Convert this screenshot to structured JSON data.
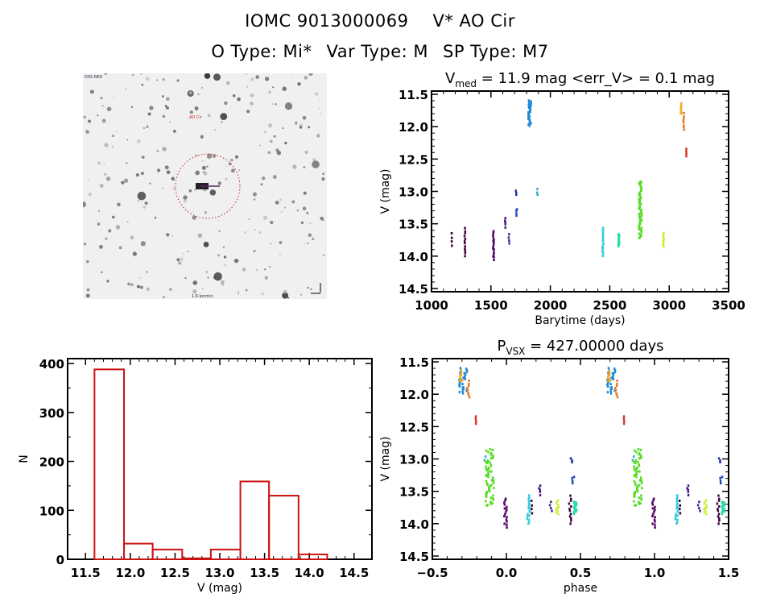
{
  "header": {
    "id_catalog": "IOMC 9013000069",
    "star_name": "V* AO Cir",
    "o_type": "O Type: Mi*",
    "var_type": "Var Type: M",
    "sp_type": "SP Type: M7"
  },
  "sky_image": {
    "description": "finding chart, inverted grayscale",
    "target_marker": "red dotted circle with crosshair"
  },
  "colors": {
    "histogram": "#cc1111",
    "axes": "#000000",
    "circle": "#cc2222"
  },
  "chart_data": [
    {
      "type": "scatter",
      "name": "lightcurve",
      "title_main": "V",
      "title_sub": "med",
      "title_rest": " = 11.9 mag <err_V> = 0.1 mag",
      "xlabel": "Barytime (days)",
      "ylabel": "V (mag)",
      "xlim": [
        1000,
        3500
      ],
      "ylim": [
        14.55,
        11.45
      ],
      "yreversed": true,
      "xticks": [
        "1000",
        "1500",
        "2000",
        "2500",
        "3000",
        "3500"
      ],
      "yticks": [
        "11.5",
        "12.0",
        "12.5",
        "13.0",
        "13.5",
        "14.0",
        "14.5"
      ],
      "clusters": [
        {
          "x": 1170,
          "ymin": 13.65,
          "ymax": 13.83,
          "color": "#330033",
          "n": 4
        },
        {
          "x": 1280,
          "ymin": 13.57,
          "ymax": 14.0,
          "color": "#440044",
          "n": 12
        },
        {
          "x": 1520,
          "ymin": 13.62,
          "ymax": 14.05,
          "color": "#550066",
          "n": 16
        },
        {
          "x": 1620,
          "ymin": 13.42,
          "ymax": 13.55,
          "color": "#4a1a88",
          "n": 5
        },
        {
          "x": 1650,
          "ymin": 13.66,
          "ymax": 13.8,
          "color": "#3a2a99",
          "n": 4
        },
        {
          "x": 1710,
          "ymin": 13.0,
          "ymax": 13.05,
          "color": "#2233aa",
          "n": 3
        },
        {
          "x": 1715,
          "ymin": 13.27,
          "ymax": 13.37,
          "color": "#2244bb",
          "n": 4
        },
        {
          "x": 1825,
          "ymin": 11.6,
          "ymax": 11.98,
          "color": "#1e88d8",
          "n": 30
        },
        {
          "x": 1890,
          "ymin": 12.97,
          "ymax": 13.05,
          "color": "#33aacc",
          "n": 3
        },
        {
          "x": 2440,
          "ymin": 13.57,
          "ymax": 14.0,
          "color": "#33ccdd",
          "n": 18
        },
        {
          "x": 2575,
          "ymin": 13.66,
          "ymax": 13.85,
          "color": "#22ddaa",
          "n": 20
        },
        {
          "x": 2755,
          "ymin": 12.85,
          "ymax": 13.72,
          "color": "#55dd22",
          "n": 60
        },
        {
          "x": 2950,
          "ymin": 13.65,
          "ymax": 13.85,
          "color": "#ccee33",
          "n": 10
        },
        {
          "x": 3100,
          "ymin": 11.65,
          "ymax": 11.8,
          "color": "#eeaa22",
          "n": 8
        },
        {
          "x": 3120,
          "ymin": 11.8,
          "ymax": 12.05,
          "color": "#e87722",
          "n": 8
        },
        {
          "x": 3140,
          "ymin": 12.35,
          "ymax": 12.45,
          "color": "#dd3322",
          "n": 4
        }
      ]
    },
    {
      "type": "bar",
      "name": "histogram",
      "xlabel": "V (mag)",
      "ylabel": "N",
      "xlim": [
        11.3,
        14.7
      ],
      "ylim": [
        0,
        410
      ],
      "xticks": [
        "11.5",
        "12.0",
        "12.5",
        "13.0",
        "13.5",
        "14.0",
        "14.5"
      ],
      "yticks": [
        "0",
        "100",
        "200",
        "300",
        "400"
      ],
      "bin_edges": [
        11.6,
        11.93,
        12.25,
        12.58,
        12.9,
        13.23,
        13.55,
        13.88,
        14.2
      ],
      "values": [
        388,
        32,
        20,
        2,
        20,
        159,
        130,
        10
      ]
    },
    {
      "type": "scatter",
      "name": "phased-lightcurve",
      "title_main": "P",
      "title_sub": "VSX",
      "title_rest": " = 427.00000 days",
      "xlabel": "phase",
      "ylabel": "V (mag)",
      "xlim": [
        -0.5,
        1.5
      ],
      "ylim": [
        14.55,
        11.45
      ],
      "yreversed": true,
      "xticks": [
        "−0.5",
        "0.0",
        "0.5",
        "1.0",
        "1.5"
      ],
      "yticks": [
        "11.5",
        "12.0",
        "12.5",
        "13.0",
        "13.5",
        "14.0",
        "14.5"
      ],
      "period_days": 427.0
    }
  ]
}
